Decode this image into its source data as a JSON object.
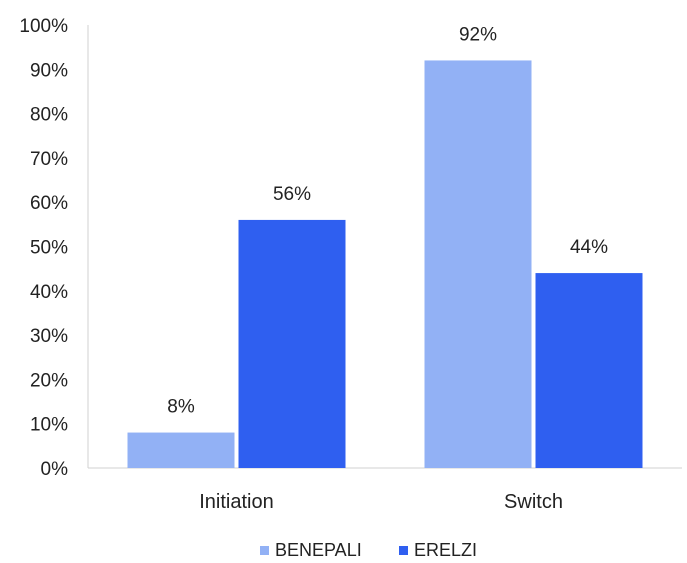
{
  "chart_data": {
    "type": "bar",
    "categories": [
      "Initiation",
      "Switch"
    ],
    "series": [
      {
        "name": "BENEPALI",
        "values": [
          8,
          92
        ],
        "labels": [
          "8%",
          "92%"
        ],
        "color": "#92b1f5"
      },
      {
        "name": "ERELZI",
        "values": [
          56,
          44
        ],
        "labels": [
          "56%",
          "44%"
        ],
        "color": "#2f5ff0"
      }
    ],
    "ylim": [
      0,
      100
    ],
    "yticks": [
      "0%",
      "10%",
      "20%",
      "30%",
      "40%",
      "50%",
      "60%",
      "70%",
      "80%",
      "90%",
      "100%"
    ],
    "grid": false,
    "legend": "bottom"
  }
}
